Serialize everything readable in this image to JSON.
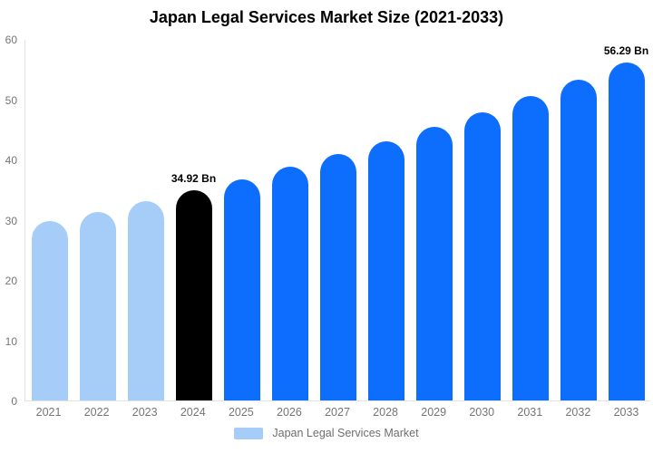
{
  "chart_data": {
    "type": "bar",
    "title": "Japan Legal Services Market Size (2021-2033)",
    "categories": [
      "2021",
      "2022",
      "2023",
      "2024",
      "2025",
      "2026",
      "2027",
      "2028",
      "2029",
      "2030",
      "2031",
      "2032",
      "2033"
    ],
    "values": [
      29.78,
      31.4,
      33.11,
      34.92,
      36.82,
      38.83,
      40.94,
      43.18,
      45.53,
      48.01,
      50.63,
      53.39,
      56.29
    ],
    "bar_colors": [
      "#a6cdf7",
      "#a6cdf7",
      "#a6cdf7",
      "#000000",
      "#0d6efd",
      "#0d6efd",
      "#0d6efd",
      "#0d6efd",
      "#0d6efd",
      "#0d6efd",
      "#0d6efd",
      "#0d6efd",
      "#0d6efd"
    ],
    "data_labels": [
      "",
      "",
      "",
      "34.92 Bn",
      "",
      "",
      "",
      "",
      "",
      "",
      "",
      "",
      "56.29 Bn"
    ],
    "xlabel": "",
    "ylabel": "",
    "ylim": [
      0,
      60
    ],
    "yticks": [
      0,
      10,
      20,
      30,
      40,
      50,
      60
    ],
    "grid": false,
    "legend_position": "bottom",
    "legend_label": "Japan Legal Services Market",
    "legend_swatch_color": "#a6cdf7",
    "colors": {
      "historical_bar": "#a6cdf7",
      "base_year_bar": "#000000",
      "forecast_bar": "#0d6efd",
      "axis_line": "#e3e3e3",
      "axis_text": "#757575",
      "title_text": "#000000"
    }
  }
}
